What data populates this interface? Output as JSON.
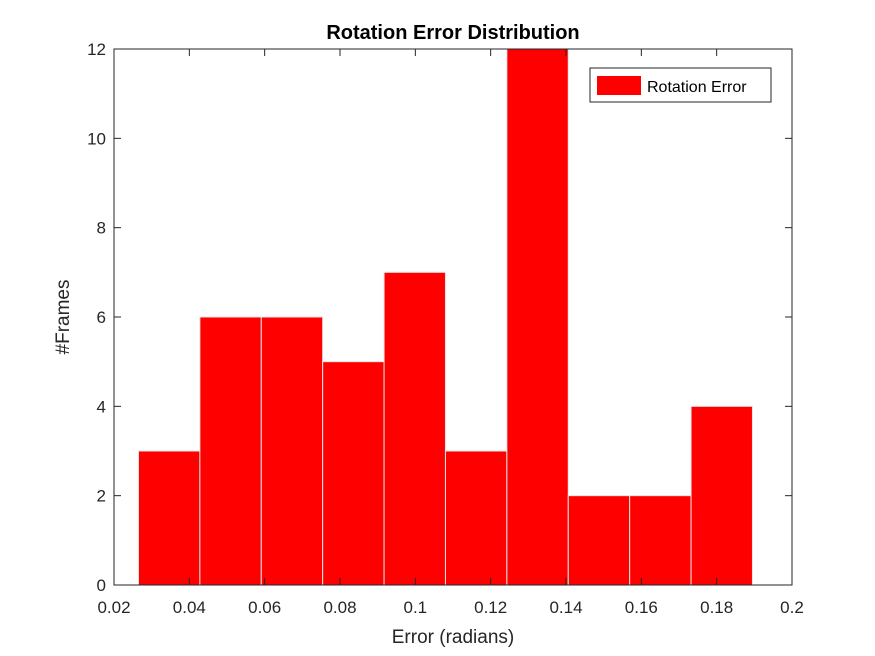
{
  "chart_data": {
    "type": "bar",
    "subtype": "histogram",
    "title": "Rotation Error Distribution",
    "xlabel": "Error (radians)",
    "ylabel": "#Frames",
    "xlim": [
      0.02,
      0.2
    ],
    "ylim": [
      0,
      12
    ],
    "xticks": [
      "0.02",
      "0.04",
      "0.06",
      "0.08",
      "0.1",
      "0.12",
      "0.14",
      "0.16",
      "0.18",
      "0.2"
    ],
    "yticks": [
      "0",
      "2",
      "4",
      "6",
      "8",
      "10",
      "12"
    ],
    "bin_edges": [
      0.0265,
      0.0428,
      0.0591,
      0.0754,
      0.0917,
      0.108,
      0.1243,
      0.1406,
      0.1569,
      0.1732,
      0.1895
    ],
    "values": [
      3,
      6,
      6,
      5,
      7,
      3,
      12,
      2,
      2,
      4
    ],
    "series": [
      {
        "name": "Rotation Error",
        "color": "#ff0000"
      }
    ],
    "legend_position": "top-right",
    "grid": false
  }
}
